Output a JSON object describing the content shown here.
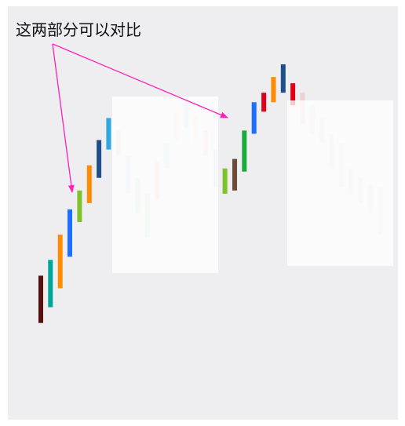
{
  "annotation": "这两部分可以对比",
  "colors": {
    "panel_bg": "#eeeef0",
    "arrow": "#ff1fba",
    "overlay": "#ffffff"
  },
  "chart_data": {
    "type": "bar",
    "title": "",
    "xlabel": "",
    "ylabel": "",
    "grid": false,
    "legend": "none",
    "ylim": [
      0,
      100
    ],
    "bars": [
      {
        "value": [
          17,
          32
        ],
        "color": "#5a0f0f",
        "faded": false
      },
      {
        "value": [
          22,
          37
        ],
        "color": "#00a59b",
        "faded": false
      },
      {
        "value": [
          28,
          45
        ],
        "color": "#ff8c00",
        "faded": false
      },
      {
        "value": [
          38,
          53
        ],
        "color": "#1e6fff",
        "faded": false
      },
      {
        "value": [
          49,
          59
        ],
        "color": "#7ec32a",
        "faded": false
      },
      {
        "value": [
          55,
          67
        ],
        "color": "#ff8c00",
        "faded": false
      },
      {
        "value": [
          63,
          75
        ],
        "color": "#1f4e8c",
        "faded": false
      },
      {
        "value": [
          72,
          82
        ],
        "color": "#2fa8e0",
        "faded": false
      },
      {
        "value": [
          70,
          78
        ],
        "color": "#e05050",
        "faded": true
      },
      {
        "value": [
          58,
          70
        ],
        "color": "#4a90e2",
        "faded": true
      },
      {
        "value": [
          52,
          63
        ],
        "color": "#30b050",
        "faded": true
      },
      {
        "value": [
          44,
          58
        ],
        "color": "#2ea84a",
        "faded": true
      },
      {
        "value": [
          56,
          68
        ],
        "color": "#e07030",
        "faded": true
      },
      {
        "value": [
          66,
          74
        ],
        "color": "#20a8a0",
        "faded": true
      },
      {
        "value": [
          75,
          84
        ],
        "color": "#ffa040",
        "faded": true
      },
      {
        "value": [
          79,
          88
        ],
        "color": "#4a7ab8",
        "faded": true
      },
      {
        "value": [
          74,
          83
        ],
        "color": "#ffa040",
        "faded": true
      },
      {
        "value": [
          70,
          78
        ],
        "color": "#e05050",
        "faded": true
      },
      {
        "value": [
          60,
          72
        ],
        "color": "#4a90e2",
        "faded": true
      },
      {
        "value": [
          58,
          66
        ],
        "color": "#7ec32a",
        "faded": false
      },
      {
        "value": [
          59,
          69
        ],
        "color": "#6b4a3a",
        "faded": false
      },
      {
        "value": [
          65,
          78
        ],
        "color": "#1aaa40",
        "faded": false
      },
      {
        "value": [
          77,
          87
        ],
        "color": "#1e6fff",
        "faded": false
      },
      {
        "value": [
          84,
          90
        ],
        "color": "#e0001a",
        "faded": false
      },
      {
        "value": [
          87,
          95
        ],
        "color": "#ff8c00",
        "faded": false
      },
      {
        "value": [
          90,
          99
        ],
        "color": "#1f4e8c",
        "faded": false
      },
      {
        "value": [
          86,
          93
        ],
        "color": "#e0001a",
        "faded": false
      },
      {
        "value": [
          80,
          90
        ],
        "color": "#e05050",
        "faded": true
      },
      {
        "value": [
          77,
          86
        ],
        "color": "#a0a0a0",
        "faded": true
      },
      {
        "value": [
          74,
          82
        ],
        "color": "#a0a0a0",
        "faded": true
      },
      {
        "value": [
          66,
          77
        ],
        "color": "#a0a0a0",
        "faded": true
      },
      {
        "value": [
          60,
          74
        ],
        "color": "#a0a0a0",
        "faded": true
      },
      {
        "value": [
          58,
          66
        ],
        "color": "#a0a0a0",
        "faded": true
      },
      {
        "value": [
          55,
          63
        ],
        "color": "#a0a0a0",
        "faded": true
      },
      {
        "value": [
          52,
          61
        ],
        "color": "#a0a0a0",
        "faded": true
      },
      {
        "value": [
          45,
          60
        ],
        "color": "#a0a0a0",
        "faded": true
      }
    ]
  }
}
